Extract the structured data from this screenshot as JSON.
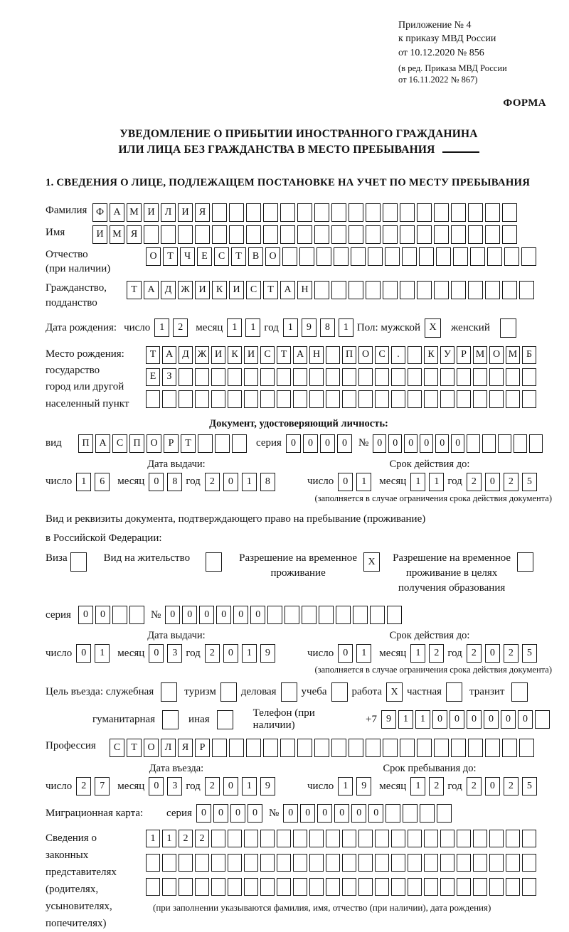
{
  "header": {
    "lines": [
      "Приложение № 4",
      "к приказу МВД России",
      "от 10.12.2020 № 856"
    ],
    "sub_lines": [
      "(в ред. Приказа МВД России",
      "от 16.11.2022 № 867)"
    ],
    "forma": "ФОРМА"
  },
  "title": {
    "line1": "УВЕДОМЛЕНИЕ О ПРИБЫТИИ ИНОСТРАННОГО ГРАЖДАНИНА",
    "line2": "ИЛИ ЛИЦА БЕЗ ГРАЖДАНСТВА В МЕСТО ПРЕБЫВАНИЯ"
  },
  "section1": {
    "heading": "1. СВЕДЕНИЯ О ЛИЦЕ, ПОДЛЕЖАЩЕМ ПОСТАНОВКЕ НА УЧЕТ ПО МЕСТУ ПРЕБЫВАНИЯ",
    "labels": {
      "surname": "Фамилия",
      "name": "Имя",
      "patronymic": "Отчество",
      "patronymic2": "(при наличии)",
      "citizenship1": "Гражданство,",
      "citizenship2": "подданство",
      "birth_date": "Дата рождения:",
      "day": "число",
      "month": "месяц",
      "year": "год",
      "sex_male": "Пол: мужской",
      "sex_female": "женский",
      "birthplace1": "Место рождения:",
      "birthplace2": "государство",
      "birthplace3": "город или другой",
      "birthplace4": "населенный пункт",
      "doc_heading": "Документ, удостоверяющий личность:",
      "doc_type": "вид",
      "series": "серия",
      "number": "№",
      "issue_date": "Дата выдачи:",
      "expiry_date": "Срок действия до:",
      "expiry_note": "(заполняется в случае ограничения срока действия документа)",
      "res_line1": "Вид и реквизиты документа, подтверждающего право на пребывание (проживание)",
      "res_line2": "в Российской Федерации:",
      "visa": "Виза",
      "residence_permit": "Вид на жительство",
      "temp_res1": "Разрешение на временное",
      "temp_res2": "проживание",
      "temp_edu1": "Разрешение на временное",
      "temp_edu2": "проживание в целях",
      "temp_edu3": "получения образования",
      "purpose_official": "Цель въезда: служебная",
      "tourism": "туризм",
      "business": "деловая",
      "study": "учеба",
      "work": "работа",
      "private": "частная",
      "transit": "транзит",
      "humanitarian": "гуманитарная",
      "other": "иная",
      "phone": "Телефон (при наличии)",
      "phone_prefix": "+7",
      "profession": "Профессия",
      "entry_date": "Дата въезда:",
      "stay_until": "Срок пребывания до:",
      "migration_card": "Миграционная карта:",
      "legal1": "Сведения о",
      "legal2": "законных",
      "legal3": "представителях",
      "legal4": "(родителях,",
      "legal5": "усыновителях,",
      "legal6": "попечителях)",
      "legal_note": "(при заполнении указываются фамилия, имя, отчество (при наличии), дата рождения)"
    },
    "values": {
      "surname": "ФАМИЛИЯ",
      "name": "ИМЯ",
      "patronymic": "ОТЧЕСТВО",
      "citizenship": "ТАДЖИКИСТАН",
      "birth": {
        "day": "12",
        "month": "11",
        "year": "1981"
      },
      "sex_male": "X",
      "sex_female": "",
      "birthplace_row1": "ТАДЖИКИСТАН ПОС. КУРМОМБ",
      "birthplace_row2": "ЕЗ",
      "birthplace_row3": "",
      "doc_type": "ПАСПОРТ",
      "doc_series": "0000",
      "doc_number": "000000",
      "doc_issue": {
        "day": "16",
        "month": "08",
        "year": "2018"
      },
      "doc_expiry": {
        "day": "01",
        "month": "11",
        "year": "2025"
      },
      "visa": "",
      "residence_permit": "",
      "temp_res": "X",
      "temp_edu": "",
      "res_series": "00",
      "res_number": "000000",
      "res_issue": {
        "day": "01",
        "month": "03",
        "year": "2019"
      },
      "res_expiry": {
        "day": "01",
        "month": "12",
        "year": "2025"
      },
      "purpose_official": "",
      "tourism": "",
      "business": "",
      "study": "",
      "work": "X",
      "private": "",
      "transit": "",
      "humanitarian": "",
      "other": "",
      "phone": "911000000",
      "profession": "СТОЛЯР",
      "entry": {
        "day": "27",
        "month": "03",
        "year": "2019"
      },
      "stay": {
        "day": "19",
        "month": "12",
        "year": "2025"
      },
      "mig_series": "0000",
      "mig_number": "000000",
      "legal_row1": "1122",
      "legal_row2": "",
      "legal_row3": ""
    }
  }
}
